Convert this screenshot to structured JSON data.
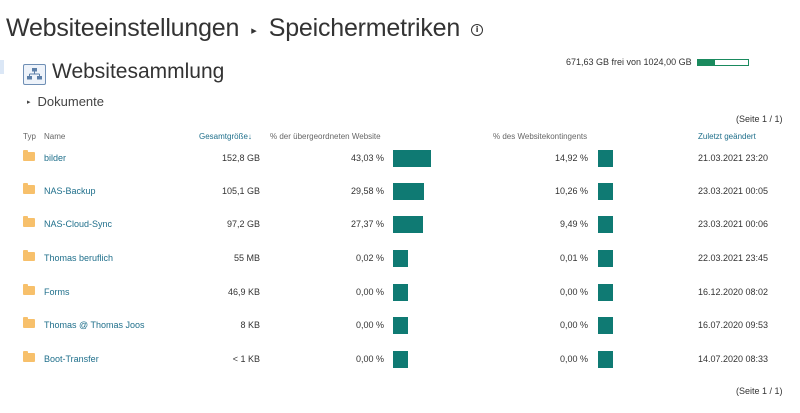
{
  "breadcrumb": {
    "part1": "Websiteeinstellungen",
    "separator": "▸",
    "part2": "Speichermetriken",
    "info_icon": "info-icon"
  },
  "quota": {
    "text": "671,63 GB frei von 1024,00 GB",
    "used_fraction": 0.344
  },
  "collection": {
    "icon": "site-collection-icon",
    "title": "Websitesammlung"
  },
  "path": {
    "arrow": "▸",
    "label": "Dokumente"
  },
  "pager": {
    "top": "(Seite 1 / 1)",
    "bottom": "(Seite 1 / 1)"
  },
  "columns": {
    "type": "Typ",
    "name": "Name",
    "size": "Gesamtgröße↓",
    "pct_parent": "% der übergeordneten Website",
    "pct_quota": "% des Websitekontingents",
    "modified": "Zuletzt geändert"
  },
  "rows": [
    {
      "name": "bilder",
      "size": "152,8 GB",
      "pct_parent": "43,03 %",
      "pct_parent_value": 43.03,
      "pct_quota": "14,92 %",
      "pct_quota_value": 14.92,
      "modified": "21.03.2021 23:20"
    },
    {
      "name": "NAS-Backup",
      "size": "105,1 GB",
      "pct_parent": "29,58 %",
      "pct_parent_value": 29.58,
      "pct_quota": "10,26 %",
      "pct_quota_value": 10.26,
      "modified": "23.03.2021 00:05"
    },
    {
      "name": "NAS-Cloud-Sync",
      "size": "97,2 GB",
      "pct_parent": "27,37 %",
      "pct_parent_value": 27.37,
      "pct_quota": "9,49 %",
      "pct_quota_value": 9.49,
      "modified": "23.03.2021 00:06"
    },
    {
      "name": "Thomas beruflich",
      "size": "55 MB",
      "pct_parent": "0,02 %",
      "pct_parent_value": 0.02,
      "pct_quota": "0,01 %",
      "pct_quota_value": 0.01,
      "modified": "22.03.2021 23:45"
    },
    {
      "name": "Forms",
      "size": "46,9 KB",
      "pct_parent": "0,00 %",
      "pct_parent_value": 0,
      "pct_quota": "0,00 %",
      "pct_quota_value": 0,
      "modified": "16.12.2020 08:02"
    },
    {
      "name": "Thomas @ Thomas Joos",
      "size": "8 KB",
      "pct_parent": "0,00 %",
      "pct_parent_value": 0,
      "pct_quota": "0,00 %",
      "pct_quota_value": 0,
      "modified": "16.07.2020 09:53"
    },
    {
      "name": "Boot-Transfer",
      "size": "< 1 KB",
      "pct_parent": "0,00 %",
      "pct_parent_value": 0,
      "pct_quota": "0,00 %",
      "pct_quota_value": 0,
      "modified": "14.07.2020 08:33"
    }
  ],
  "colors": {
    "accent": "#0f7a73",
    "link": "#1f6f8b",
    "folder": "#f7c06b",
    "quota": "#1a8a5e"
  }
}
